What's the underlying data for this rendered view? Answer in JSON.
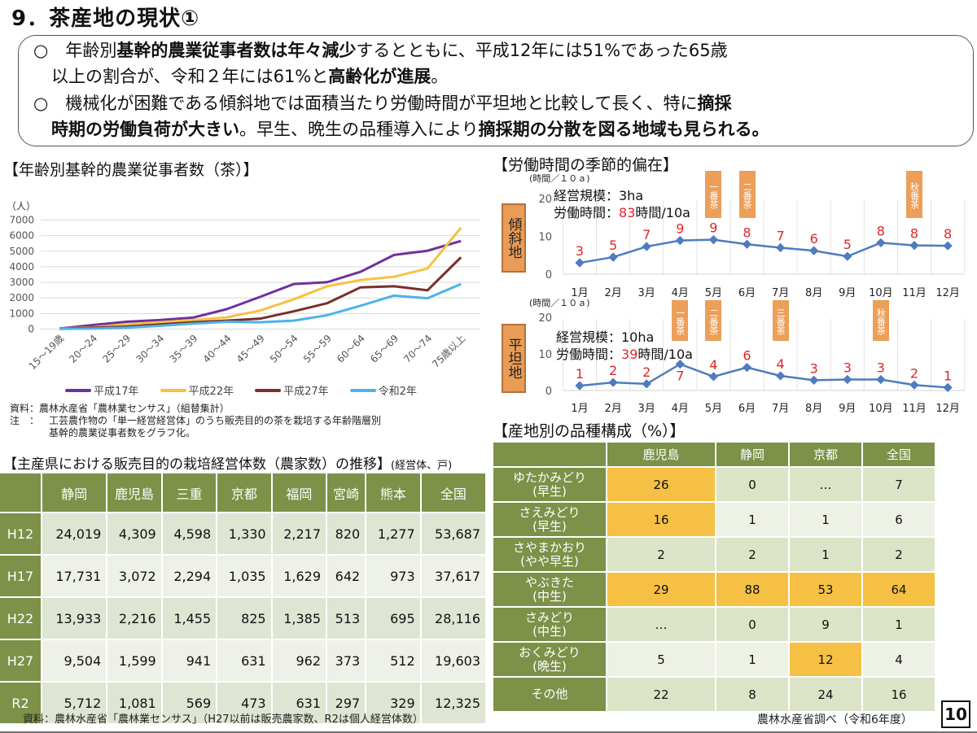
{
  "title": "9．茶産地の現状①",
  "summary": {
    "line1": [
      {
        "t": "○　年齢別",
        "b": false
      },
      {
        "t": "基幹的農業従事者数は年々減少",
        "b": true
      },
      {
        "t": "するとともに、平成12年には51%であった65歳",
        "b": false
      }
    ],
    "line2": [
      {
        "t": "以上の割合が、令和２年には61%と",
        "b": false
      },
      {
        "t": "高齢化が進展",
        "b": true
      },
      {
        "t": "。",
        "b": false
      }
    ],
    "line3": [
      {
        "t": "○　機械化が困難である傾斜地では面積当たり労働時間が平坦地と比較して長く、特に",
        "b": false
      },
      {
        "t": "摘採",
        "b": true
      }
    ],
    "line4": [
      {
        "t": "時期の労働負荷が大きい",
        "b": true
      },
      {
        "t": "。早生、晩生の品種導入により",
        "b": false
      },
      {
        "t": "摘採期の分散を図る地域も見られる。",
        "b": true
      }
    ]
  },
  "age_section": {
    "title": "【年齢別基幹的農業従事者数（茶）】",
    "source": "資料：農林水産省「農林業センサス」（組替集計）",
    "note_label": "注　：",
    "note_line1": "工芸農作物の「単一経営経営体」のうち販売目的の茶を栽培する年齢階層別",
    "note_line2": "基幹的農業従事者数をグラフ化。"
  },
  "labor_section": {
    "title": "【労働時間の季節的偏在】",
    "slope": {
      "tag": "傾斜地",
      "unit": "(時間／１０ａ)",
      "scale_label": "経営規模：3ha",
      "hours_prefix": "労働時間：",
      "hours_value": "83",
      "hours_suffix": "時間/10a",
      "season_tags": [
        {
          "label": "一番茶",
          "month": 5
        },
        {
          "label": "二番茶",
          "month": 6
        },
        {
          "label": "秋番茶",
          "month": 11
        }
      ]
    },
    "flat": {
      "tag": "平坦地",
      "unit": "(時間／１０ａ)",
      "scale_label": "経営規模：10ha",
      "hours_prefix": "労働時間：",
      "hours_value": "39",
      "hours_suffix": "時間/10a",
      "season_tags": [
        {
          "label": "一番茶",
          "month": 4
        },
        {
          "label": "二番茶",
          "month": 5
        },
        {
          "label": "三番茶",
          "month": 7
        },
        {
          "label": "秋番茶",
          "month": 10
        }
      ]
    }
  },
  "farm_table": {
    "title": "【主産県における販売目的の栽培経営体数（農家数）の推移】",
    "unit": "(経営体、戸)",
    "headers": [
      "",
      "静岡",
      "鹿児島",
      "三重",
      "京都",
      "福岡",
      "宮崎",
      "熊本",
      "全国"
    ],
    "rows": [
      {
        "year": "H12",
        "values": [
          "24,019",
          "4,309",
          "4,598",
          "1,330",
          "2,217",
          "820",
          "1,277",
          "53,687"
        ]
      },
      {
        "year": "H17",
        "values": [
          "17,731",
          "3,072",
          "2,294",
          "1,035",
          "1,629",
          "642",
          "973",
          "37,617"
        ]
      },
      {
        "year": "H22",
        "values": [
          "13,933",
          "2,216",
          "1,455",
          "825",
          "1,385",
          "513",
          "695",
          "28,116"
        ]
      },
      {
        "year": "H27",
        "values": [
          "9,504",
          "1,599",
          "941",
          "631",
          "962",
          "373",
          "512",
          "19,603"
        ]
      },
      {
        "year": "R2",
        "values": [
          "5,712",
          "1,081",
          "569",
          "473",
          "631",
          "297",
          "329",
          "12,325"
        ]
      }
    ],
    "source": "資料：農林水産省「農林業センサス」（H27以前は販売農家数、R2は個人経営体数）"
  },
  "variety_table": {
    "title": "【産地別の品種構成（%）】",
    "headers": [
      "",
      "鹿児島",
      "静岡",
      "京都",
      "全国"
    ],
    "rows": [
      {
        "name": "ゆたかみどり",
        "type": "(早生)",
        "values": [
          "26",
          "0",
          "…",
          "7"
        ],
        "highlight": [
          true,
          false,
          false,
          false
        ]
      },
      {
        "name": "さえみどり",
        "type": "(早生)",
        "values": [
          "16",
          "1",
          "1",
          "6"
        ],
        "highlight": [
          true,
          false,
          false,
          false
        ]
      },
      {
        "name": "さやまかおり",
        "type": "(やや早生)",
        "values": [
          "2",
          "2",
          "1",
          "2"
        ],
        "highlight": [
          false,
          false,
          false,
          false
        ]
      },
      {
        "name": "やぶきた",
        "type": "(中生)",
        "values": [
          "29",
          "88",
          "53",
          "64"
        ],
        "highlight": [
          true,
          true,
          true,
          true
        ]
      },
      {
        "name": "さみどり",
        "type": "(中生)",
        "values": [
          "…",
          "0",
          "9",
          "1"
        ],
        "highlight": [
          false,
          false,
          false,
          false
        ]
      },
      {
        "name": "おくみどり",
        "type": "(晩生)",
        "values": [
          "5",
          "1",
          "12",
          "4"
        ],
        "highlight": [
          false,
          false,
          true,
          false
        ]
      },
      {
        "name": "その他",
        "type": "",
        "values": [
          "22",
          "8",
          "24",
          "16"
        ],
        "highlight": [
          false,
          false,
          false,
          false
        ]
      }
    ],
    "source": "農林水産省調べ（令和6年度）"
  },
  "page_number": "10",
  "chart_data": [
    {
      "type": "line",
      "title": "【年齢別基幹的農業従事者数（茶）】",
      "ylabel": "（人）",
      "xlabel": "",
      "ylim": [
        0,
        7000
      ],
      "yticks": [
        0,
        1000,
        2000,
        3000,
        4000,
        5000,
        6000,
        7000
      ],
      "grid": true,
      "legend": "bottom",
      "categories": [
        "15～19歳",
        "20～24",
        "25～29",
        "30～34",
        "35～39",
        "40～44",
        "45～49",
        "50～54",
        "55～59",
        "60～64",
        "65～69",
        "70～74",
        "75歳以上"
      ],
      "series": [
        {
          "name": "平成17年",
          "color": "#7030a0",
          "values": [
            30,
            260,
            470,
            580,
            740,
            1280,
            2070,
            2890,
            3010,
            3680,
            4760,
            5030,
            5660
          ]
        },
        {
          "name": "平成22年",
          "color": "#f7c242",
          "values": [
            30,
            120,
            300,
            440,
            580,
            750,
            1190,
            1910,
            2750,
            3150,
            3360,
            3890,
            6510
          ]
        },
        {
          "name": "平成27年",
          "color": "#78302a",
          "values": [
            20,
            90,
            160,
            300,
            440,
            540,
            670,
            1140,
            1660,
            2680,
            2750,
            2490,
            4610
          ]
        },
        {
          "name": "令和2年",
          "color": "#4db3e8",
          "values": [
            10,
            35,
            90,
            210,
            350,
            470,
            440,
            540,
            890,
            1500,
            2150,
            1980,
            2890
          ]
        }
      ]
    },
    {
      "type": "line",
      "title": "傾斜地",
      "ylabel": "(時間／１０ａ)",
      "ylim": [
        0,
        20
      ],
      "yticks": [
        0,
        10,
        20
      ],
      "grid": true,
      "categories": [
        "1月",
        "2月",
        "3月",
        "4月",
        "5月",
        "6月",
        "7月",
        "8月",
        "9月",
        "10月",
        "11月",
        "12月"
      ],
      "series": [
        {
          "name": "労働時間",
          "color": "#4f7bbf",
          "values": [
            3.0,
            4.5,
            7.3,
            8.9,
            9.1,
            7.9,
            7.0,
            6.2,
            4.7,
            8.3,
            7.6,
            7.5
          ],
          "data_labels": [
            "3",
            "5",
            "7",
            "9",
            "9",
            "8",
            "7",
            "6",
            "5",
            "8",
            "8",
            "8"
          ]
        }
      ]
    },
    {
      "type": "line",
      "title": "平坦地",
      "ylabel": "(時間／１０ａ)",
      "ylim": [
        0,
        20
      ],
      "yticks": [
        0,
        10,
        20
      ],
      "grid": true,
      "categories": [
        "1月",
        "2月",
        "3月",
        "4月",
        "5月",
        "6月",
        "7月",
        "8月",
        "9月",
        "10月",
        "11月",
        "12月"
      ],
      "series": [
        {
          "name": "労働時間",
          "color": "#4f7bbf",
          "values": [
            1.3,
            2.2,
            1.8,
            7.2,
            3.8,
            6.3,
            4.0,
            2.8,
            3.0,
            3.0,
            1.5,
            0.8
          ],
          "data_labels": [
            "1",
            "2",
            "2",
            "7",
            "4",
            "6",
            "4",
            "3",
            "3",
            "3",
            "2",
            "1"
          ]
        }
      ]
    }
  ]
}
